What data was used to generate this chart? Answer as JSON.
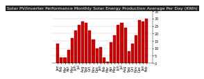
{
  "title": "Solar PV/Inverter Performance Monthly Solar Energy Production Average Per Day (KWh)",
  "bar_values": [
    13,
    4,
    4,
    9,
    17,
    22,
    26,
    28,
    27,
    22,
    16,
    10,
    11,
    4,
    1,
    14,
    19,
    26,
    27,
    24,
    8,
    13,
    19,
    29,
    28,
    30
  ],
  "bar_colors": [
    "#cc0000",
    "#cc0000",
    "#cc0000",
    "#cc0000",
    "#cc0000",
    "#cc0000",
    "#cc0000",
    "#cc0000",
    "#cc0000",
    "#cc0000",
    "#cc0000",
    "#cc0000",
    "#cc0000",
    "#cc0000",
    "#cc0000",
    "#cc0000",
    "#cc0000",
    "#cc0000",
    "#cc0000",
    "#cc0000",
    "#cc0000",
    "#cc0000",
    "#cc0000",
    "#cc0000",
    "#cc0000",
    "#cc0000"
  ],
  "ylim": [
    0,
    35
  ],
  "yticks": [
    0,
    5,
    10,
    15,
    20,
    25,
    30,
    35
  ],
  "bg_color": "#ffffff",
  "header_color": "#222222",
  "grid_color": "#aaaaaa",
  "title_fontsize": 4.5,
  "tick_fontsize": 3.5
}
